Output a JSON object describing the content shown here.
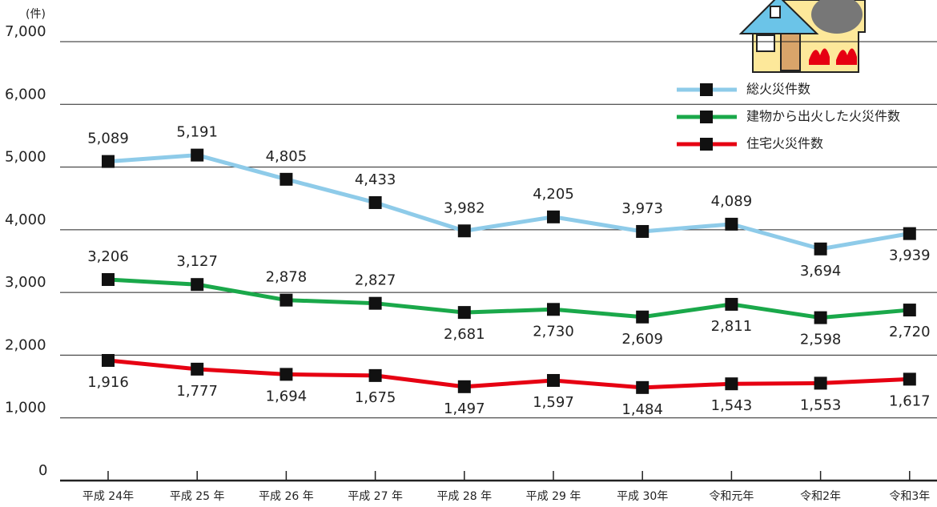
{
  "chart_data": {
    "type": "line",
    "unit_label": "(件)",
    "categories": [
      "平成 24年",
      "平成 25 年",
      "平成 26 年",
      "平成 27 年",
      "平成 28 年",
      "平成 29 年",
      "平成 30年",
      "令和元年",
      "令和2年",
      "令和3年"
    ],
    "series": [
      {
        "name": "総火災件数",
        "color": "#8ecbe9",
        "values": [
          5089,
          5191,
          4805,
          4433,
          3982,
          4205,
          3973,
          4089,
          3694,
          3939
        ],
        "value_labels": [
          "5,089",
          "5,191",
          "4,805",
          "4,433",
          "3,982",
          "4,205",
          "3,973",
          "4,089",
          "3,694",
          "3,939"
        ]
      },
      {
        "name": "建物から出火した火災件数",
        "color": "#1aa84a",
        "values": [
          3206,
          3127,
          2878,
          2827,
          2681,
          2730,
          2609,
          2811,
          2598,
          2720
        ],
        "value_labels": [
          "3,206",
          "3,127",
          "2,878",
          "2,827",
          "2,681",
          "2,730",
          "2,609",
          "2,811",
          "2,598",
          "2,720"
        ]
      },
      {
        "name": "住宅火災件数",
        "color": "#e60012",
        "values": [
          1916,
          1777,
          1694,
          1675,
          1497,
          1597,
          1484,
          1543,
          1553,
          1617
        ],
        "value_labels": [
          "1,916",
          "1,777",
          "1,694",
          "1,675",
          "1,497",
          "1,597",
          "1,484",
          "1,543",
          "1,553",
          "1,617"
        ]
      }
    ],
    "ylim": [
      0,
      7000
    ],
    "yticks": [
      0,
      {
        "value": 1000,
        "label": "1,000"
      },
      {
        "value": 2000,
        "label": "2,000"
      },
      {
        "value": 3000,
        "label": "3,000"
      },
      {
        "value": 4000,
        "label": "4,000"
      },
      {
        "value": 5000,
        "label": "5,000"
      },
      {
        "value": 6000,
        "label": "6,000"
      },
      {
        "value": 7000,
        "label": "7,000"
      }
    ],
    "grid": true,
    "legend": "upper right",
    "marker_color": "#111111"
  }
}
